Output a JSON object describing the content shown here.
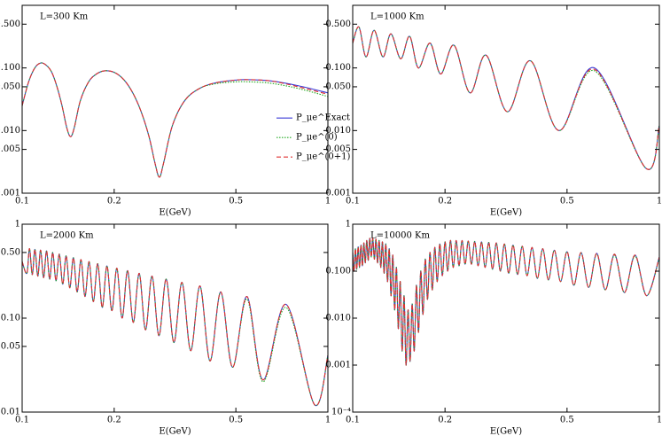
{
  "chart_data": [
    {
      "type": "line",
      "annotation": "L=300 Km",
      "xlabel": "E(GeV)",
      "log_x": true,
      "log_y": true,
      "legend": "center right",
      "xlim": [
        0.1,
        1
      ],
      "xticks": [
        0.1,
        0.2,
        0.5,
        1
      ],
      "ylim": [
        0.001,
        1
      ],
      "yticks": [
        0.001,
        0.005,
        {
          "value": 0.01,
          "label": "0.010"
        },
        {
          "value": 0.05,
          "label": "0.050"
        },
        {
          "value": 0.1,
          "label": "0.100"
        },
        {
          "value": 0.5,
          "label": "0.500"
        }
      ],
      "x": [
        0.1,
        0.105,
        0.11,
        0.115,
        0.12,
        0.125,
        0.13,
        0.135,
        0.14,
        0.144,
        0.148,
        0.155,
        0.165,
        0.175,
        0.186,
        0.2,
        0.215,
        0.23,
        0.245,
        0.26,
        0.272,
        0.281,
        0.29,
        0.31,
        0.34,
        0.38,
        0.43,
        0.5,
        0.55,
        0.65,
        0.8,
        1
      ],
      "series": [
        {
          "name": "P_μe^Exact",
          "color": "#3a3ad6",
          "linestyle": "solid",
          "values": [
            0.025,
            0.06,
            0.1,
            0.12,
            0.11,
            0.085,
            0.05,
            0.025,
            0.011,
            0.008,
            0.011,
            0.03,
            0.06,
            0.08,
            0.09,
            0.085,
            0.065,
            0.04,
            0.02,
            0.008,
            0.003,
            0.0018,
            0.003,
            0.012,
            0.03,
            0.047,
            0.058,
            0.064,
            0.065,
            0.062,
            0.052,
            0.04
          ]
        },
        {
          "name": "P_μe^(0)",
          "color": "#22aa22",
          "linestyle": "dotted",
          "values": [
            0.025,
            0.06,
            0.1,
            0.12,
            0.11,
            0.085,
            0.05,
            0.025,
            0.011,
            0.008,
            0.011,
            0.03,
            0.06,
            0.08,
            0.09,
            0.085,
            0.065,
            0.04,
            0.02,
            0.008,
            0.003,
            0.0018,
            0.003,
            0.012,
            0.03,
            0.047,
            0.056,
            0.06,
            0.06,
            0.057,
            0.047,
            0.035
          ]
        },
        {
          "name": "P_μe^(0+1)",
          "color": "#e03030",
          "linestyle": "dashed",
          "values": [
            0.025,
            0.06,
            0.1,
            0.12,
            0.11,
            0.085,
            0.05,
            0.025,
            0.011,
            0.008,
            0.011,
            0.03,
            0.06,
            0.08,
            0.09,
            0.085,
            0.065,
            0.04,
            0.02,
            0.008,
            0.003,
            0.0018,
            0.003,
            0.012,
            0.03,
            0.047,
            0.058,
            0.064,
            0.065,
            0.062,
            0.05,
            0.038
          ]
        }
      ]
    },
    {
      "type": "line",
      "annotation": "L=1000 Km",
      "xlabel": "E(GeV)",
      "log_x": true,
      "log_y": true,
      "xlim": [
        0.1,
        1
      ],
      "xticks": [
        0.1,
        0.2,
        0.5,
        1
      ],
      "ylim": [
        0.001,
        1
      ],
      "yticks": [
        0.001,
        0.005,
        {
          "value": 0.01,
          "label": "0.010"
        },
        {
          "value": 0.05,
          "label": "0.050"
        },
        {
          "value": 0.1,
          "label": "0.100"
        },
        {
          "value": 0.5,
          "label": "0.500"
        }
      ],
      "x": [
        0.1,
        0.1048,
        0.1105,
        0.1174,
        0.1255,
        0.1332,
        0.1434,
        0.1533,
        0.1638,
        0.1787,
        0.1936,
        0.214,
        0.2413,
        0.2722,
        0.3194,
        0.38,
        0.4705,
        0.6143,
        0.904,
        1
      ],
      "series": [
        {
          "color": "#3a3ad6",
          "linestyle": "solid",
          "values": [
            0.25,
            0.45,
            0.15,
            0.4,
            0.15,
            0.35,
            0.14,
            0.32,
            0.1,
            0.25,
            0.08,
            0.23,
            0.04,
            0.16,
            0.02,
            0.13,
            0.01,
            0.1,
            0.0025,
            0.012
          ]
        },
        {
          "color": "#22aa22",
          "linestyle": "dotted",
          "values": [
            0.25,
            0.45,
            0.15,
            0.4,
            0.15,
            0.35,
            0.14,
            0.32,
            0.1,
            0.25,
            0.08,
            0.23,
            0.04,
            0.16,
            0.02,
            0.13,
            0.01,
            0.09,
            0.0025,
            0.012
          ]
        },
        {
          "color": "#e03030",
          "linestyle": "dashed",
          "values": [
            0.25,
            0.45,
            0.15,
            0.4,
            0.15,
            0.35,
            0.14,
            0.32,
            0.1,
            0.25,
            0.08,
            0.23,
            0.04,
            0.16,
            0.02,
            0.13,
            0.01,
            0.095,
            0.0025,
            0.012
          ]
        }
      ]
    },
    {
      "type": "line",
      "annotation": "L=2000 Km",
      "xlabel": "E(GeV)",
      "log_x": true,
      "log_y": true,
      "xlim": [
        0.1,
        1
      ],
      "xticks": [
        0.1,
        0.2,
        0.5,
        1
      ],
      "ylim": [
        0.01,
        1
      ],
      "yticks": [
        0.01,
        0.05,
        {
          "value": 0.1,
          "label": "0.10"
        },
        {
          "value": 0.5,
          "label": "0.50"
        },
        1
      ],
      "x": [
        0.1,
        0.1036,
        0.1057,
        0.1079,
        0.1101,
        0.1125,
        0.1149,
        0.1175,
        0.1202,
        0.123,
        0.1259,
        0.129,
        0.1323,
        0.1357,
        0.1393,
        0.1431,
        0.1471,
        0.1513,
        0.1558,
        0.1605,
        0.1656,
        0.1709,
        0.1767,
        0.1828,
        0.1894,
        0.1965,
        0.2041,
        0.2123,
        0.2212,
        0.2309,
        0.2415,
        0.2532,
        0.266,
        0.2801,
        0.2959,
        0.3135,
        0.3333,
        0.3559,
        0.3817,
        0.4115,
        0.4464,
        0.4878,
        0.5435,
        0.6135,
        0.73,
        0.904,
        1
      ],
      "series": [
        {
          "color": "#3a3ad6",
          "linestyle": "solid",
          "values": [
            0.4,
            0.3,
            0.55,
            0.29,
            0.54,
            0.28,
            0.53,
            0.27,
            0.52,
            0.26,
            0.5,
            0.25,
            0.48,
            0.23,
            0.46,
            0.21,
            0.44,
            0.19,
            0.42,
            0.17,
            0.4,
            0.15,
            0.38,
            0.13,
            0.36,
            0.12,
            0.34,
            0.1,
            0.32,
            0.09,
            0.3,
            0.075,
            0.28,
            0.065,
            0.26,
            0.055,
            0.24,
            0.045,
            0.22,
            0.035,
            0.19,
            0.03,
            0.17,
            0.022,
            0.14,
            0.012,
            0.04
          ]
        },
        {
          "color": "#22aa22",
          "linestyle": "dotted",
          "values": [
            0.4,
            0.3,
            0.55,
            0.29,
            0.54,
            0.28,
            0.53,
            0.27,
            0.52,
            0.26,
            0.5,
            0.25,
            0.48,
            0.23,
            0.46,
            0.21,
            0.44,
            0.19,
            0.42,
            0.17,
            0.4,
            0.15,
            0.38,
            0.13,
            0.36,
            0.12,
            0.34,
            0.1,
            0.32,
            0.09,
            0.3,
            0.075,
            0.28,
            0.065,
            0.26,
            0.055,
            0.24,
            0.045,
            0.22,
            0.035,
            0.19,
            0.03,
            0.16,
            0.021,
            0.13,
            0.012,
            0.04
          ]
        },
        {
          "color": "#e03030",
          "linestyle": "dashed",
          "values": [
            0.4,
            0.3,
            0.55,
            0.29,
            0.54,
            0.28,
            0.53,
            0.27,
            0.52,
            0.26,
            0.5,
            0.25,
            0.48,
            0.23,
            0.46,
            0.21,
            0.44,
            0.19,
            0.42,
            0.17,
            0.4,
            0.15,
            0.38,
            0.13,
            0.36,
            0.12,
            0.34,
            0.1,
            0.32,
            0.09,
            0.3,
            0.075,
            0.28,
            0.065,
            0.26,
            0.055,
            0.24,
            0.045,
            0.22,
            0.035,
            0.19,
            0.03,
            0.17,
            0.022,
            0.14,
            0.012,
            0.04
          ]
        }
      ]
    },
    {
      "type": "line",
      "annotation": "L=10000 Km",
      "xlabel": "E(GeV)",
      "log_x": true,
      "log_y": true,
      "xlim": [
        0.1,
        1
      ],
      "xticks": [
        0.1,
        0.2,
        0.5,
        1
      ],
      "ylim": [
        0.0001,
        1
      ],
      "yticks": [
        {
          "value": 0.0001,
          "label": "10⁻⁴"
        },
        0.001,
        {
          "value": 0.01,
          "label": "0.010"
        },
        {
          "value": 0.1,
          "label": "0.100"
        },
        1
      ],
      "x": [
        0.1,
        0.10101,
        0.10204,
        0.10309,
        0.10417,
        0.10526,
        0.10638,
        0.10753,
        0.1087,
        0.10989,
        0.11111,
        0.11236,
        0.11364,
        0.11494,
        0.11628,
        0.11765,
        0.11905,
        0.12048,
        0.12195,
        0.12346,
        0.125,
        0.12658,
        0.12821,
        0.12987,
        0.13158,
        0.13333,
        0.13514,
        0.13699,
        0.13889,
        0.14085,
        0.14286,
        0.14493,
        0.14706,
        0.14925,
        0.15152,
        0.15385,
        0.15625,
        0.15873,
        0.16129,
        0.16393,
        0.16667,
        0.16949,
        0.17241,
        0.17544,
        0.17857,
        0.18182,
        0.18519,
        0.18868,
        0.19231,
        0.19608,
        0.2,
        0.20408,
        0.20833,
        0.21277,
        0.21739,
        0.22222,
        0.22727,
        0.23256,
        0.2381,
        0.2439,
        0.25,
        0.25641,
        0.26316,
        0.27027,
        0.27778,
        0.28571,
        0.29412,
        0.30303,
        0.3125,
        0.32258,
        0.33333,
        0.34483,
        0.35714,
        0.37037,
        0.38462,
        0.4,
        0.41667,
        0.43478,
        0.45455,
        0.47619,
        0.5,
        0.52632,
        0.55556,
        0.58824,
        0.625,
        0.66667,
        0.71429,
        0.76923,
        0.83333,
        0.90909,
        1
      ],
      "series": [
        {
          "color": "#3a3ad6",
          "linestyle": "solid",
          "values": [
            0.25,
            0.1,
            0.3,
            0.11,
            0.33,
            0.12,
            0.36,
            0.13,
            0.4,
            0.15,
            0.45,
            0.17,
            0.5,
            0.2,
            0.5,
            0.18,
            0.48,
            0.15,
            0.45,
            0.12,
            0.42,
            0.09,
            0.38,
            0.06,
            0.3,
            0.03,
            0.22,
            0.015,
            0.12,
            0.006,
            0.06,
            0.002,
            0.03,
            0.001,
            0.015,
            0.0012,
            0.02,
            0.002,
            0.05,
            0.005,
            0.1,
            0.012,
            0.18,
            0.025,
            0.25,
            0.04,
            0.32,
            0.06,
            0.38,
            0.08,
            0.42,
            0.1,
            0.45,
            0.12,
            0.45,
            0.13,
            0.45,
            0.14,
            0.44,
            0.14,
            0.43,
            0.13,
            0.42,
            0.12,
            0.41,
            0.11,
            0.4,
            0.1,
            0.38,
            0.09,
            0.36,
            0.085,
            0.34,
            0.08,
            0.32,
            0.07,
            0.3,
            0.065,
            0.28,
            0.06,
            0.26,
            0.05,
            0.25,
            0.045,
            0.24,
            0.04,
            0.23,
            0.035,
            0.22,
            0.03,
            0.2
          ]
        },
        {
          "color": "#22aa22",
          "linestyle": "dotted",
          "values": [
            0.25,
            0.1,
            0.3,
            0.11,
            0.33,
            0.12,
            0.36,
            0.13,
            0.4,
            0.15,
            0.45,
            0.17,
            0.5,
            0.2,
            0.5,
            0.18,
            0.48,
            0.15,
            0.45,
            0.12,
            0.42,
            0.09,
            0.38,
            0.06,
            0.3,
            0.03,
            0.22,
            0.015,
            0.12,
            0.006,
            0.06,
            0.002,
            0.03,
            0.001,
            0.015,
            0.0012,
            0.02,
            0.002,
            0.05,
            0.005,
            0.1,
            0.012,
            0.18,
            0.025,
            0.25,
            0.04,
            0.32,
            0.06,
            0.38,
            0.08,
            0.42,
            0.1,
            0.45,
            0.12,
            0.45,
            0.13,
            0.45,
            0.14,
            0.44,
            0.14,
            0.43,
            0.13,
            0.42,
            0.12,
            0.41,
            0.11,
            0.4,
            0.1,
            0.38,
            0.09,
            0.36,
            0.085,
            0.34,
            0.08,
            0.32,
            0.07,
            0.3,
            0.065,
            0.28,
            0.06,
            0.26,
            0.05,
            0.24,
            0.045,
            0.23,
            0.04,
            0.22,
            0.035,
            0.21,
            0.03,
            0.19
          ]
        },
        {
          "color": "#e03030",
          "linestyle": "dashed",
          "values": [
            0.25,
            0.1,
            0.3,
            0.11,
            0.33,
            0.12,
            0.36,
            0.13,
            0.4,
            0.15,
            0.45,
            0.17,
            0.5,
            0.2,
            0.5,
            0.18,
            0.48,
            0.15,
            0.45,
            0.12,
            0.42,
            0.09,
            0.38,
            0.06,
            0.3,
            0.03,
            0.22,
            0.015,
            0.12,
            0.006,
            0.06,
            0.002,
            0.03,
            0.001,
            0.015,
            0.0012,
            0.02,
            0.002,
            0.05,
            0.005,
            0.1,
            0.012,
            0.18,
            0.025,
            0.25,
            0.04,
            0.32,
            0.06,
            0.38,
            0.08,
            0.42,
            0.1,
            0.45,
            0.12,
            0.45,
            0.13,
            0.45,
            0.14,
            0.44,
            0.14,
            0.43,
            0.13,
            0.42,
            0.12,
            0.41,
            0.11,
            0.4,
            0.1,
            0.38,
            0.09,
            0.36,
            0.085,
            0.34,
            0.08,
            0.32,
            0.07,
            0.3,
            0.065,
            0.28,
            0.06,
            0.26,
            0.05,
            0.25,
            0.045,
            0.24,
            0.04,
            0.23,
            0.035,
            0.22,
            0.03,
            0.2
          ]
        }
      ]
    }
  ]
}
